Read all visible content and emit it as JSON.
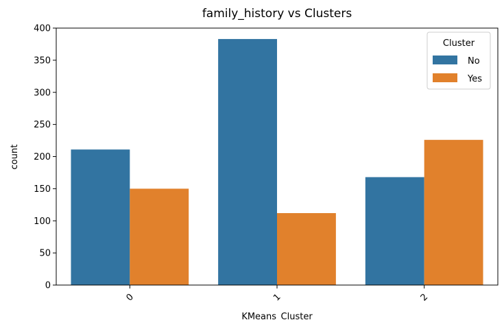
{
  "chart_data": {
    "type": "bar",
    "title": "family_history vs Clusters",
    "xlabel": "KMeans_Cluster",
    "ylabel": "count",
    "categories": [
      "0",
      "1",
      "2"
    ],
    "series": [
      {
        "name": "No",
        "values": [
          211,
          383,
          168
        ],
        "color": "#3274a1"
      },
      {
        "name": "Yes",
        "values": [
          150,
          112,
          226
        ],
        "color": "#e1812c"
      }
    ],
    "ylim": [
      0,
      400
    ],
    "yticks": [
      "0",
      "50",
      "100",
      "150",
      "200",
      "250",
      "300",
      "350",
      "400"
    ],
    "grid": false,
    "legend": {
      "title": "Cluster",
      "placement": "top-right"
    }
  }
}
